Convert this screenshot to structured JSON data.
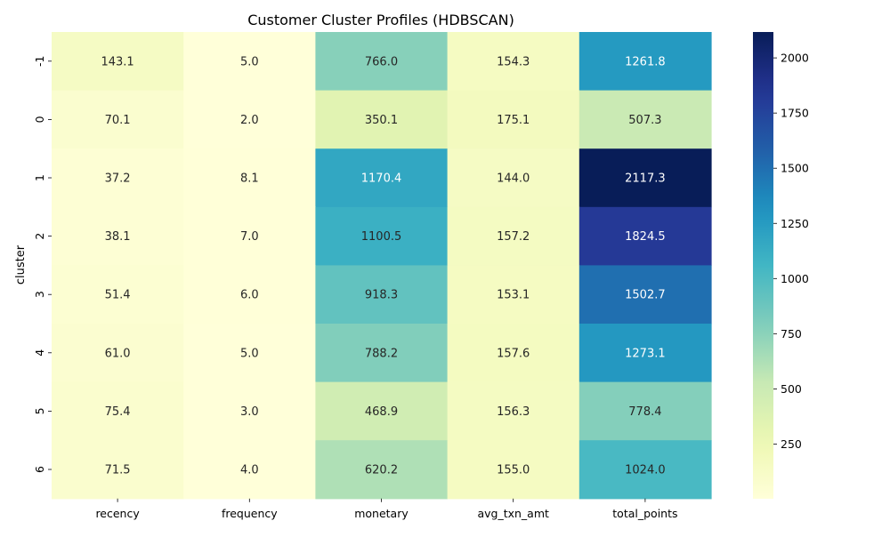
{
  "chart_data": {
    "type": "heatmap",
    "title": "Customer Cluster Profiles (HDBSCAN)",
    "xlabel": "",
    "ylabel": "cluster",
    "columns": [
      "recency",
      "frequency",
      "monetary",
      "avg_txn_amt",
      "total_points"
    ],
    "rows": [
      "-1",
      "0",
      "1",
      "2",
      "3",
      "4",
      "5",
      "6"
    ],
    "values": [
      [
        143.1,
        5.0,
        766.0,
        154.3,
        1261.8
      ],
      [
        70.1,
        2.0,
        350.1,
        175.1,
        507.3
      ],
      [
        37.2,
        8.1,
        1170.4,
        144.0,
        2117.3
      ],
      [
        38.1,
        7.0,
        1100.5,
        157.2,
        1824.5
      ],
      [
        51.4,
        6.0,
        918.3,
        153.1,
        1502.7
      ],
      [
        61.0,
        5.0,
        788.2,
        157.6,
        1273.1
      ],
      [
        75.4,
        3.0,
        468.9,
        156.3,
        778.4
      ],
      [
        71.5,
        4.0,
        620.2,
        155.0,
        1024.0
      ]
    ],
    "value_format": "0.1f",
    "colormap": "YlGnBu",
    "color_range": [
      2.0,
      2117.3
    ],
    "colorbar_ticks": [
      250,
      500,
      750,
      1000,
      1250,
      1500,
      1750,
      2000
    ],
    "colorbar_tick_labels": [
      "250",
      "500",
      "750",
      "1000",
      "1250",
      "1500",
      "1750",
      "2000"
    ],
    "colorbar_position": "right",
    "grid": false
  }
}
